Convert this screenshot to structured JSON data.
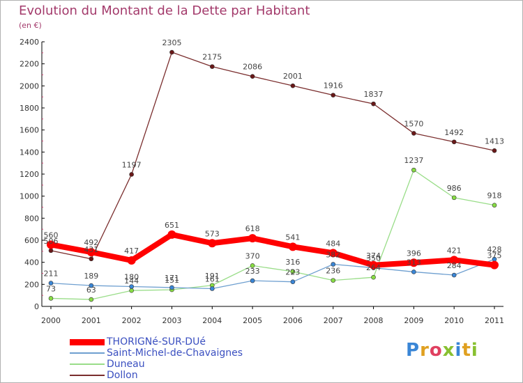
{
  "title": "Evolution du Montant de la Dette par Habitant",
  "subtitle": "(en €)",
  "logo": "Proxiti",
  "chart_data": {
    "type": "line",
    "title": "Evolution du Montant de la Dette par Habitant",
    "subtitle": "(en €)",
    "xlabel": "",
    "ylabel": "",
    "x": [
      "2000",
      "2001",
      "2002",
      "2003",
      "2004",
      "2005",
      "2006",
      "2007",
      "2008",
      "2009",
      "2010",
      "2011"
    ],
    "ylim": [
      0,
      2400
    ],
    "yticks": [
      0,
      200,
      400,
      600,
      800,
      1000,
      1200,
      1400,
      1600,
      1800,
      2000,
      2200,
      2400
    ],
    "grid": false,
    "legend_position": "bottom-left",
    "series": [
      {
        "name": "THORIGNé-SUR-DUé",
        "color": "#ff0000",
        "values": [
          560,
          492,
          417,
          651,
          573,
          618,
          541,
          484,
          374,
          396,
          421,
          375
        ],
        "labels": [
          "560",
          "492",
          "417",
          "651",
          "573",
          "618",
          "541",
          "484",
          "374",
          "396",
          "421",
          "375"
        ]
      },
      {
        "name": "Saint-Michel-de-Chavaignes",
        "color": "#6e9fd0",
        "marker": "#3a86d6",
        "values": [
          211,
          189,
          180,
          171,
          161,
          233,
          223,
          382,
          350,
          313,
          284,
          428
        ],
        "labels": [
          "211",
          "189",
          "180",
          "171",
          "161",
          "233",
          "223",
          "382",
          "350",
          "313",
          "284",
          "428"
        ]
      },
      {
        "name": "Duneau",
        "color": "#99dd88",
        "marker": "#88dd44",
        "values": [
          73,
          63,
          144,
          151,
          191,
          370,
          316,
          236,
          264,
          1237,
          986,
          918
        ],
        "labels": [
          "73",
          "63",
          "144",
          "151",
          "191",
          "370",
          "316",
          "236",
          "264",
          "1237",
          "986",
          "918"
        ]
      },
      {
        "name": "Dollon",
        "color": "#7a2d2d",
        "marker": "#6a1818",
        "values": [
          506,
          431,
          1197,
          2305,
          2175,
          2086,
          2001,
          1916,
          1837,
          1570,
          1492,
          1413
        ],
        "labels": [
          "506",
          "431",
          "1197",
          "2305",
          "2175",
          "2086",
          "2001",
          "1916",
          "1837",
          "1570",
          "1492",
          "1413"
        ]
      }
    ]
  }
}
